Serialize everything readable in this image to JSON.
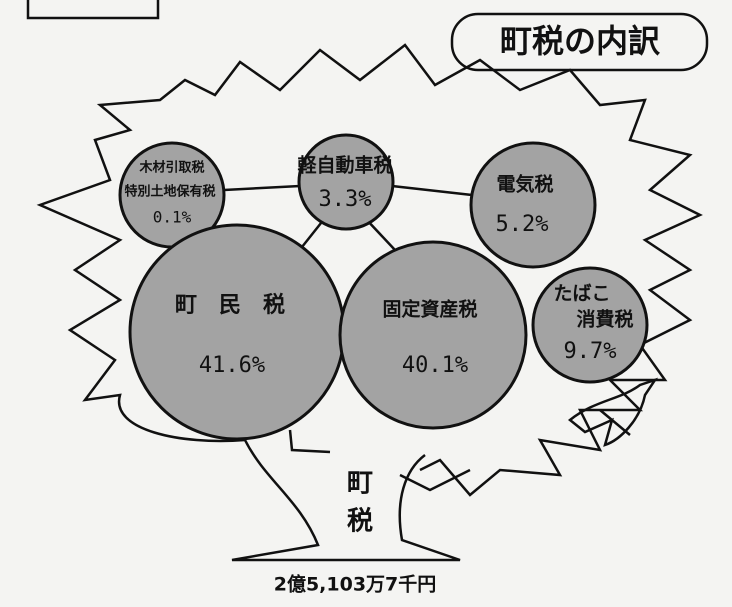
{
  "title": "町税の内訳",
  "nodes": [
    {
      "label": [
        "木材引取税",
        "特別土地保有税"
      ],
      "share": "0.1%"
    },
    {
      "label": [
        "軽自動車税"
      ],
      "share": "3.3%"
    },
    {
      "label": [
        "電気税"
      ],
      "share": "5.2%"
    },
    {
      "label": [
        "町　民　税"
      ],
      "share": "41.6%"
    },
    {
      "label": [
        "固定資産税"
      ],
      "share": "40.1%"
    },
    {
      "label": [
        "たばこ",
        "消費税"
      ],
      "share": "9.7%"
    }
  ],
  "trunk": [
    "町",
    "税"
  ],
  "total": "2億5,103万7千円"
}
